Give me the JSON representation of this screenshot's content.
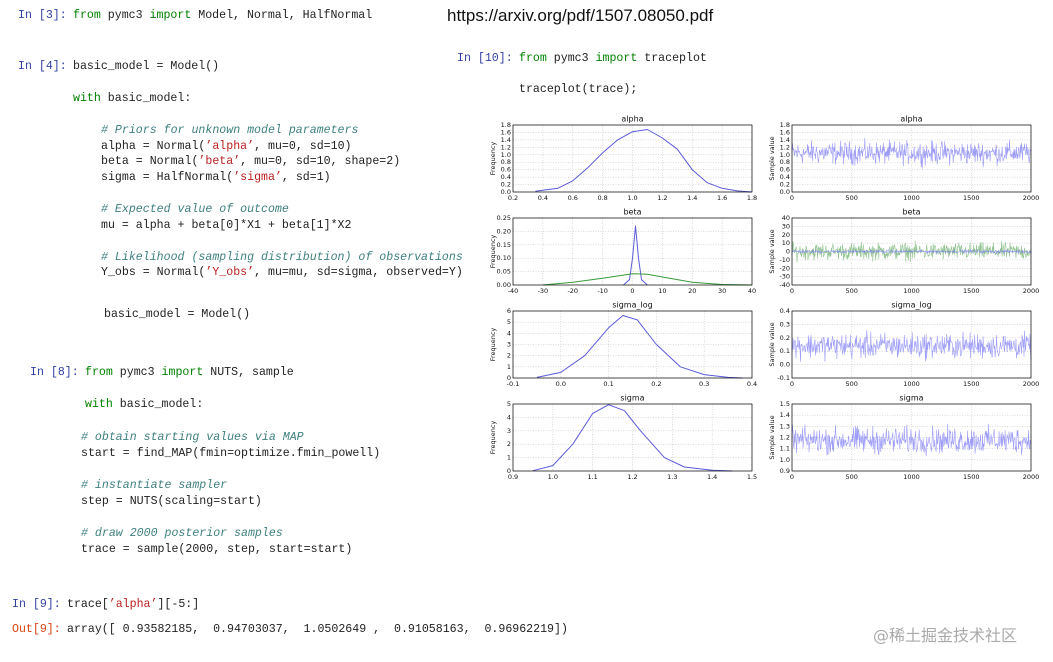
{
  "url": "https://arxiv.org/pdf/1507.08050.pdf",
  "watermark": "@稀土掘金技术社区",
  "cells": [
    {
      "prompt": "In [3]:",
      "lines": [
        [
          "from",
          " pymc3 ",
          "import",
          " Model, Normal, HalfNormal"
        ]
      ]
    },
    {
      "prompt": "In [4]:",
      "lines": [
        [
          "basic_model = Model()"
        ],
        [
          "with",
          " basic_model:"
        ],
        [
          "# Priors for unknown model parameters"
        ],
        [
          "alpha = Normal(",
          "’alpha’",
          ", mu=0, sd=10)"
        ],
        [
          "beta = Normal(",
          "’beta’",
          ", mu=0, sd=10, shape=2)"
        ],
        [
          "sigma = HalfNormal(",
          "’sigma’",
          ", sd=1)"
        ],
        [
          "# Expected value of outcome"
        ],
        [
          "mu = alpha + beta[0]*X1 + beta[1]*X2"
        ],
        [
          "# Likelihood (sampling distribution) of observations"
        ],
        [
          "Y_obs = Normal(",
          "’Y_obs’",
          ", mu=mu, sd=sigma, observed=Y)"
        ],
        [
          "basic_model = Model()"
        ]
      ]
    },
    {
      "prompt": "In [8]:",
      "lines": [
        [
          "from",
          " pymc3 ",
          "import",
          " NUTS, sample"
        ],
        [
          "with",
          " basic_model:"
        ],
        [
          "# obtain starting values via MAP"
        ],
        [
          "start = find_MAP(fmin=optimize.fmin_powell)"
        ],
        [
          "# instantiate sampler"
        ],
        [
          "step = NUTS(scaling=start)"
        ],
        [
          "# draw 2000 posterior samples"
        ],
        [
          "trace = sample(2000, step, start=start)"
        ]
      ]
    },
    {
      "prompt": "In [9]:",
      "lines": [
        [
          "trace[",
          "’alpha’",
          "][-5:]"
        ]
      ]
    },
    {
      "prompt": "Out[9]:",
      "lines": [
        [
          "array([ 0.93582185,  0.94703037,  1.0502649 ,  0.91058163,  0.96962219])"
        ]
      ]
    },
    {
      "prompt": "In [10]:",
      "lines": [
        [
          "from",
          " pymc3 ",
          "import",
          " traceplot"
        ],
        [
          "traceplot(trace);"
        ]
      ]
    }
  ],
  "plots": [
    {
      "type": "line",
      "title": "alpha",
      "ylabel": "Frequency",
      "xlim": [
        0.2,
        1.8
      ],
      "xticks": [
        0.2,
        0.4,
        0.6,
        0.8,
        {
          "value": 1,
          "label": "1.0"
        },
        1.2,
        1.4,
        1.6,
        1.8
      ],
      "ylim": [
        0,
        1.8
      ],
      "yticks": [
        {
          "value": 0,
          "label": "0.0"
        },
        0.2,
        0.4,
        0.6,
        0.8,
        {
          "value": 1,
          "label": "1.0"
        },
        1.2,
        1.4,
        1.6,
        1.8
      ],
      "series": [
        {
          "color": "#5a5ad8",
          "x": [
            0.35,
            0.5,
            0.6,
            0.7,
            0.8,
            0.9,
            1.0,
            1.1,
            1.2,
            1.3,
            1.4,
            1.5,
            1.6,
            1.7,
            1.8
          ],
          "y": [
            0.02,
            0.1,
            0.3,
            0.65,
            1.05,
            1.4,
            1.62,
            1.68,
            1.45,
            1.15,
            0.6,
            0.25,
            0.1,
            0.03,
            0
          ]
        }
      ]
    },
    {
      "type": "trace",
      "title": "alpha",
      "ylabel": "Sample value",
      "xlim": [
        0,
        2000
      ],
      "xticks": [
        0,
        500,
        1000,
        1500,
        2000
      ],
      "ylim": [
        0,
        1.8
      ],
      "yticks": [
        {
          "value": 0,
          "label": "0.0"
        },
        0.2,
        0.4,
        0.6,
        0.8,
        {
          "value": 1,
          "label": "1.0"
        },
        1.2,
        1.4,
        1.6,
        1.8
      ],
      "series": [
        {
          "color": "#7b7bf5",
          "band": [
            0.6,
            1.5
          ]
        }
      ]
    },
    {
      "type": "line",
      "title": "beta",
      "ylabel": "Frequency",
      "xlim": [
        -40,
        40
      ],
      "xticks": [
        -40,
        -30,
        -20,
        -10,
        0,
        10,
        20,
        30,
        40
      ],
      "ylim": [
        0,
        0.25
      ],
      "yticks": [
        {
          "value": 0,
          "label": "0.00"
        },
        {
          "value": 0.05,
          "label": "0.05"
        },
        {
          "value": 0.1,
          "label": "0.10"
        },
        {
          "value": 0.15,
          "label": "0.15"
        },
        {
          "value": 0.2,
          "label": "0.20"
        },
        {
          "value": 0.25,
          "label": "0.25"
        }
      ],
      "series": [
        {
          "color": "#5a5ad8",
          "x": [
            -3,
            -1,
            0,
            1,
            2,
            3,
            5
          ],
          "y": [
            0,
            0.02,
            0.1,
            0.22,
            0.1,
            0.02,
            0
          ]
        },
        {
          "color": "#3a9a3a",
          "x": [
            -30,
            -20,
            -10,
            0,
            5,
            10,
            20,
            30,
            40
          ],
          "y": [
            0,
            0.01,
            0.025,
            0.042,
            0.04,
            0.03,
            0.01,
            0.002,
            0
          ]
        }
      ]
    },
    {
      "type": "trace",
      "title": "beta",
      "ylabel": "Sample value",
      "xlim": [
        0,
        2000
      ],
      "xticks": [
        0,
        500,
        1000,
        1500,
        2000
      ],
      "ylim": [
        -40,
        40
      ],
      "yticks": [
        -40,
        -30,
        -20,
        -10,
        0,
        10,
        20,
        30,
        40
      ],
      "series": [
        {
          "color": "#6aae6a",
          "band": [
            -15,
            15
          ]
        },
        {
          "color": "#7b7bf5",
          "band": [
            -3,
            3
          ]
        }
      ]
    },
    {
      "type": "line",
      "title": "sigma_log",
      "ylabel": "Frequency",
      "xlim": [
        -0.1,
        0.4
      ],
      "xticks": [
        -0.1,
        {
          "value": 0,
          "label": "0.0"
        },
        0.1,
        0.2,
        0.3,
        0.4
      ],
      "ylim": [
        0,
        6
      ],
      "yticks": [
        0,
        1,
        2,
        3,
        4,
        5,
        6
      ],
      "series": [
        {
          "color": "#5a5ad8",
          "x": [
            -0.05,
            0,
            0.05,
            0.1,
            0.13,
            0.16,
            0.2,
            0.25,
            0.3,
            0.35,
            0.38
          ],
          "y": [
            0.05,
            0.5,
            2,
            4.5,
            5.6,
            5.2,
            3,
            1,
            0.3,
            0.05,
            0
          ]
        }
      ]
    },
    {
      "type": "trace",
      "title": "sigma_log",
      "ylabel": "Sample value",
      "xlim": [
        0,
        2000
      ],
      "xticks": [
        0,
        500,
        1000,
        1500,
        2000
      ],
      "ylim": [
        -0.1,
        0.4
      ],
      "yticks": [
        -0.1,
        {
          "value": 0,
          "label": "0.0"
        },
        0.1,
        0.2,
        0.3,
        0.4
      ],
      "series": [
        {
          "color": "#7b7bf5",
          "band": [
            0,
            0.28
          ]
        }
      ]
    },
    {
      "type": "line",
      "title": "sigma",
      "ylabel": "Frequency",
      "xlim": [
        0.9,
        1.5
      ],
      "xticks": [
        0.9,
        {
          "value": 1,
          "label": "1.0"
        },
        1.1,
        1.2,
        1.3,
        1.4,
        1.5
      ],
      "ylim": [
        0,
        5
      ],
      "yticks": [
        0,
        1,
        2,
        3,
        4,
        5
      ],
      "series": [
        {
          "color": "#5a5ad8",
          "x": [
            0.95,
            1.0,
            1.05,
            1.1,
            1.14,
            1.18,
            1.22,
            1.28,
            1.33,
            1.4,
            1.45
          ],
          "y": [
            0.02,
            0.4,
            2,
            4.3,
            4.95,
            4.5,
            3,
            1,
            0.3,
            0.05,
            0
          ]
        }
      ]
    },
    {
      "type": "trace",
      "title": "sigma",
      "ylabel": "Sample value",
      "xlim": [
        0,
        2000
      ],
      "xticks": [
        0,
        500,
        1000,
        1500,
        2000
      ],
      "ylim": [
        0.9,
        1.5
      ],
      "yticks": [
        0.9,
        {
          "value": 1,
          "label": "1.0"
        },
        1.1,
        1.2,
        1.3,
        1.4,
        1.5
      ],
      "series": [
        {
          "color": "#7b7bf5",
          "band": [
            1.0,
            1.35
          ]
        }
      ]
    }
  ]
}
